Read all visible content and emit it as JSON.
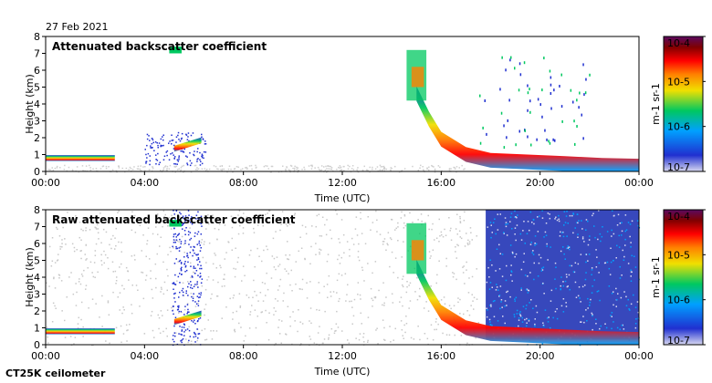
{
  "date": "27 Feb 2021",
  "instrument": "CT25K ceilometer",
  "chart_data": [
    {
      "type": "heatmap",
      "title": "Attenuated backscatter coefficient",
      "xlabel": "Time (UTC)",
      "ylabel": "Height (km)",
      "x_ticks": [
        "00:00",
        "04:00",
        "08:00",
        "12:00",
        "16:00",
        "20:00",
        "00:00"
      ],
      "y_ticks": [
        0,
        1,
        2,
        3,
        4,
        5,
        6,
        7,
        8
      ],
      "xlim_hours": [
        0,
        24
      ],
      "ylim_km": [
        0,
        8
      ],
      "colorbar": {
        "scale": "log",
        "ticks": [
          "10-7",
          "10-6",
          "10-5",
          "10-4"
        ],
        "tick_values": [
          1e-07,
          1e-06,
          1e-05,
          0.0001
        ],
        "label": "m-1 sr-1",
        "colors": [
          "#d8d8f0",
          "#2030d0",
          "#00a0ff",
          "#00c860",
          "#f0e000",
          "#ff8000",
          "#ff0000",
          "#800000",
          "#5a0a60"
        ]
      },
      "layers": [
        {
          "name": "surface-noise",
          "points": [
            [
              0,
              0
            ],
            [
              3.5,
              0
            ],
            [
              4.5,
              0.3
            ],
            [
              6,
              0.25
            ],
            [
              12,
              0.05
            ],
            [
              17,
              0
            ],
            [
              24,
              0
            ]
          ],
          "level": 0.05
        },
        {
          "name": "morning-cloud-layer",
          "points": [
            [
              0,
              0.75
            ],
            [
              2.8,
              0.75
            ]
          ],
          "level": 0.75
        },
        {
          "name": "0430-cloud-layer",
          "points": [
            [
              5.2,
              1.3
            ],
            [
              6.3,
              1.8
            ]
          ],
          "level": 0.85
        },
        {
          "name": "evening-descending-layer",
          "points": [
            [
              15.0,
              4.5
            ],
            [
              15.5,
              3.0
            ],
            [
              16.0,
              1.8
            ],
            [
              17.0,
              0.9
            ],
            [
              18.0,
              0.55
            ],
            [
              19.5,
              0.45
            ],
            [
              21.0,
              0.35
            ],
            [
              22.5,
              0.25
            ],
            [
              24,
              0.2
            ]
          ],
          "level": 0.8
        }
      ]
    },
    {
      "type": "heatmap",
      "title": "Raw attenuated backscatter coefficient",
      "xlabel": "Time (UTC)",
      "ylabel": "Height (km)",
      "x_ticks": [
        "00:00",
        "04:00",
        "08:00",
        "12:00",
        "16:00",
        "20:00",
        "00:00"
      ],
      "y_ticks": [
        0,
        1,
        2,
        3,
        4,
        5,
        6,
        7,
        8
      ],
      "xlim_hours": [
        0,
        24
      ],
      "ylim_km": [
        0,
        8
      ],
      "colorbar": {
        "scale": "log",
        "ticks": [
          "10-7",
          "10-6",
          "10-5",
          "10-4"
        ],
        "tick_values": [
          1e-07,
          1e-06,
          1e-05,
          0.0001
        ],
        "label": "m-1 sr-1",
        "colors": [
          "#d8d8f0",
          "#2030d0",
          "#00a0ff",
          "#00c860",
          "#f0e000",
          "#ff8000",
          "#ff0000",
          "#800000",
          "#5a0a60"
        ]
      },
      "layers": [
        {
          "name": "background-noise",
          "points": [
            [
              0,
              0
            ],
            [
              24,
              8
            ]
          ],
          "level": 0.02
        },
        {
          "name": "morning-cloud-layer",
          "points": [
            [
              0,
              0.75
            ],
            [
              2.8,
              0.75
            ]
          ],
          "level": 0.75
        },
        {
          "name": "0430-cloud-layer",
          "points": [
            [
              5.2,
              1.3
            ],
            [
              6.3,
              1.8
            ]
          ],
          "level": 0.85
        },
        {
          "name": "evening-descending-layer",
          "points": [
            [
              15.0,
              4.5
            ],
            [
              15.5,
              3.0
            ],
            [
              16.0,
              1.8
            ],
            [
              17.0,
              0.9
            ],
            [
              18.0,
              0.55
            ],
            [
              19.5,
              0.45
            ],
            [
              21.0,
              0.35
            ],
            [
              22.5,
              0.25
            ],
            [
              24,
              0.2
            ]
          ],
          "level": 0.8
        }
      ]
    }
  ]
}
